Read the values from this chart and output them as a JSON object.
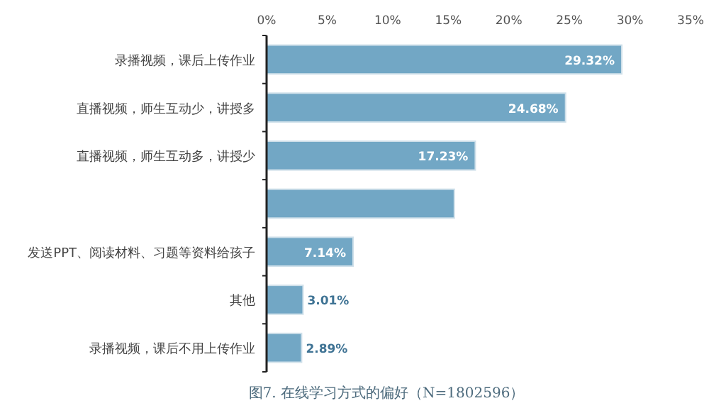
{
  "chart_data": {
    "type": "bar",
    "orientation": "horizontal",
    "title": "图7. 在线学习方式的偏好（N=1802596）",
    "categories": [
      "录播视频，课后上传作业",
      "直播视频，师生互动少，讲授多",
      "直播视频，师生互动多，讲授少",
      null,
      "发送PPT、阅读材料、习题等资料给孩子",
      "其他",
      "录播视频，课后不用上传作业"
    ],
    "values": [
      29.32,
      24.68,
      17.23,
      15.5,
      7.14,
      3.01,
      2.89
    ],
    "value_labels": [
      "29.32%",
      "24.68%",
      "17.23%",
      null,
      "7.14%",
      "3.01%",
      "2.89%"
    ],
    "color": "#72a7c5",
    "xlim": [
      0,
      35
    ],
    "xticks": [
      {
        "value": 0,
        "label": "0%"
      },
      {
        "value": 5,
        "label": "5%"
      },
      {
        "value": 10,
        "label": "10%"
      },
      {
        "value": 15,
        "label": "15%"
      },
      {
        "value": 20,
        "label": "20%"
      },
      {
        "value": 25,
        "label": "25%"
      },
      {
        "value": 30,
        "label": "30%"
      },
      {
        "value": 35,
        "label": "35%"
      }
    ],
    "grid": false
  }
}
